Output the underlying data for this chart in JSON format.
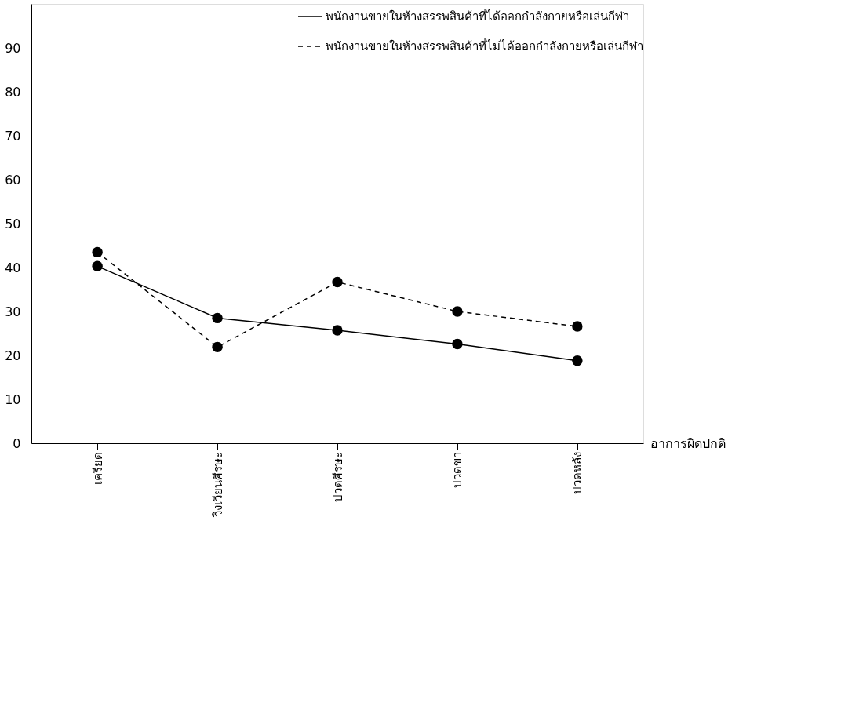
{
  "chart_data": {
    "type": "line",
    "xlabel": "อาการผิดปกติ",
    "categories": [
      "เครียด",
      "วิงเวียนศีรษะ",
      "ปวดศีรษะ",
      "ปวดขา",
      "ปวดหลัง"
    ],
    "series": [
      {
        "name": "พนักงานขายในห้างสรรพสินค้าที่ได้ออกกำลังกายหรือเล่นกีฬา",
        "color": "#000000",
        "line_style": "solid",
        "values": [
          40.3,
          28.5,
          25.7,
          22.6,
          18.8
        ]
      },
      {
        "name": "พนักงานขายในห้างสรรพสินค้าที่ไม่ได้ออกกำลังกายหรือเล่นกีฬา",
        "color": "#000000",
        "line_style": "dashed",
        "values": [
          43.5,
          21.9,
          36.7,
          30.0,
          26.6
        ]
      }
    ],
    "ylim": [
      0,
      100
    ],
    "yticks": [
      0,
      10,
      20,
      30,
      40,
      50,
      60,
      70,
      80,
      90
    ],
    "marker": "circle",
    "legend": "top right",
    "grid": false
  }
}
